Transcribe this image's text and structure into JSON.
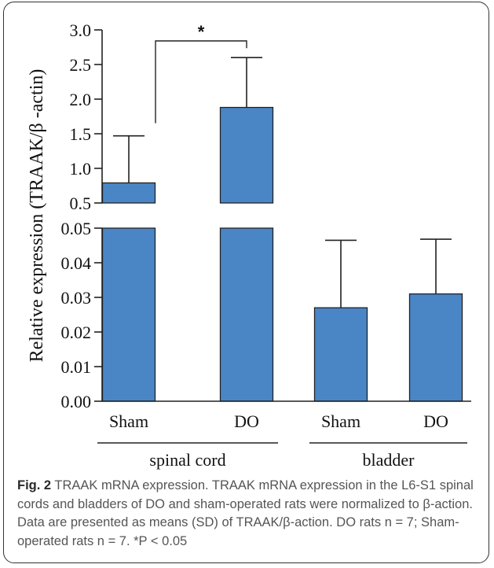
{
  "chart_data": {
    "type": "bar",
    "ylabel": "Relative expression (TRAAK/β -actin)",
    "broken_axis": true,
    "upper_segment": {
      "ylim": [
        0.5,
        3.0
      ],
      "ticks": [
        "0.5",
        "1.0",
        "1.5",
        "2.0",
        "2.5",
        "3.0"
      ]
    },
    "lower_segment": {
      "ylim": [
        0.0,
        0.05
      ],
      "ticks": [
        "0.00",
        "0.01",
        "0.02",
        "0.03",
        "0.04",
        "0.05"
      ]
    },
    "categories": [
      "Sham",
      "DO",
      "Sham",
      "DO"
    ],
    "groups": [
      {
        "label": "spinal cord",
        "categories": [
          0,
          1
        ]
      },
      {
        "label": "bladder",
        "categories": [
          2,
          3
        ]
      }
    ],
    "values": [
      0.79,
      1.88,
      0.027,
      0.031
    ],
    "sd": [
      0.68,
      0.72,
      0.0195,
      0.0158
    ],
    "bar_color": "#4a86c6",
    "significance": [
      {
        "between": [
          0,
          1
        ],
        "label": "*"
      }
    ]
  },
  "caption": {
    "fig_label": "Fig. 2",
    "text": "TRAAK mRNA expression. TRAAK mRNA expression in the L6-S1 spinal cords and bladders of DO and sham-operated rats were normalized to β-action. Data are presented as means (SD) of TRAAK/β-action. DO rats n = 7; Sham-operated rats n = 7. *P < 0.05"
  }
}
